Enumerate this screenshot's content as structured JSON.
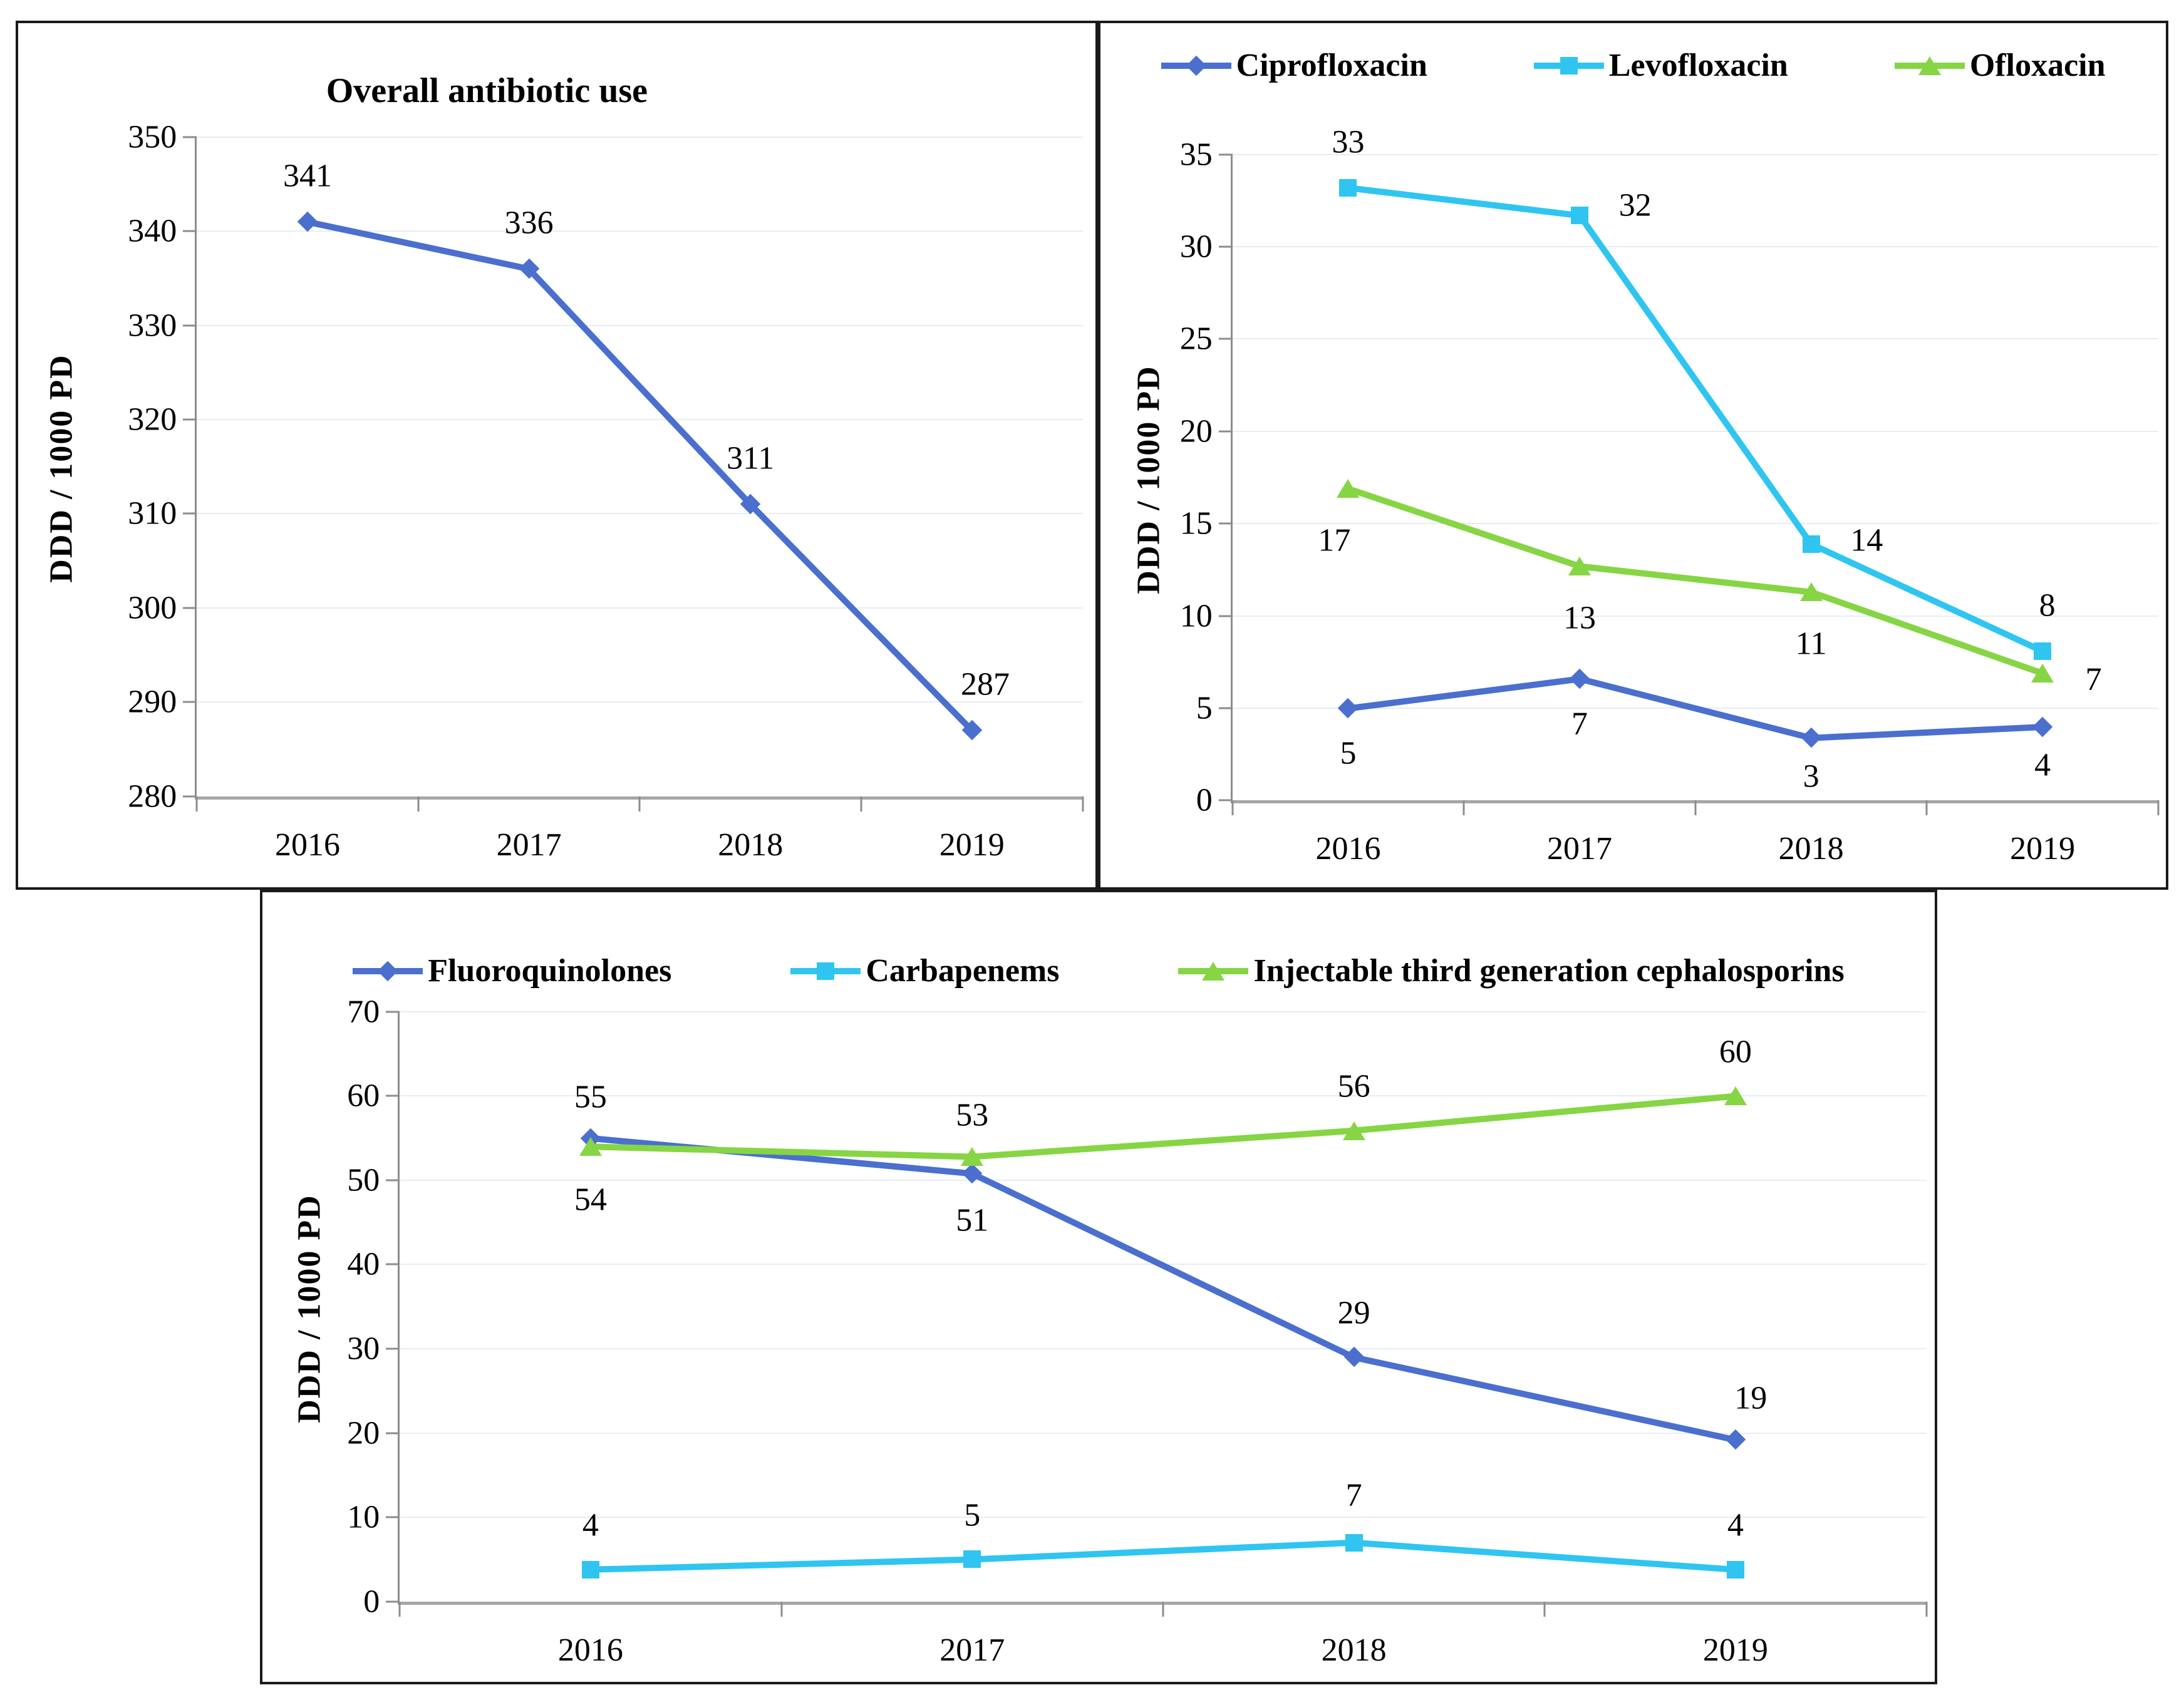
{
  "figure": {
    "description": "Three-panel line chart figure of antibiotic use, DDD per 1000 patient-days, 2016-2019",
    "x_categories": [
      "2016",
      "2017",
      "2018",
      "2019"
    ]
  },
  "colors": {
    "blue": "#4a6fce",
    "cyan": "#2fc5f0",
    "green": "#86d544",
    "gridline": "#e6edf6",
    "axis": "#8c8c8c"
  },
  "chart_data": [
    {
      "type": "line",
      "title": "Overall antibiotic use",
      "ylabel": "DDD / 1000 PD",
      "xlabel": "",
      "categories": [
        "2016",
        "2017",
        "2018",
        "2019"
      ],
      "ylim": [
        280,
        350
      ],
      "ytick_step": 10,
      "grid": true,
      "legend_position": "none",
      "series": [
        {
          "name": "Overall antibiotic use",
          "color": "#4a6fce",
          "marker": "diamond",
          "values": [
            341,
            336,
            311,
            287
          ],
          "labels": [
            "341",
            "336",
            "311",
            "287"
          ],
          "label_offsets": [
            [
              0,
              -7
            ],
            [
              0,
              -7
            ],
            [
              0,
              -7
            ],
            [
              1.5,
              -7
            ]
          ]
        }
      ]
    },
    {
      "type": "line",
      "title": "",
      "ylabel": "DDD / 1000 PD",
      "xlabel": "",
      "categories": [
        "2016",
        "2017",
        "2018",
        "2019"
      ],
      "ylim": [
        0,
        35
      ],
      "ytick_step": 5,
      "grid": true,
      "legend_position": "top",
      "series": [
        {
          "name": "Ciprofloxacin",
          "color": "#4a6fce",
          "marker": "diamond",
          "values": [
            5,
            7,
            3,
            4
          ],
          "plot_values": [
            5,
            6.6,
            3.4,
            4
          ],
          "labels": [
            "5",
            "7",
            "3",
            "4"
          ],
          "label_offsets": [
            [
              0,
              7
            ],
            [
              0,
              7
            ],
            [
              0,
              6
            ],
            [
              0,
              6
            ]
          ]
        },
        {
          "name": "Levofloxacin",
          "color": "#2fc5f0",
          "marker": "square",
          "values": [
            33,
            32,
            14,
            8
          ],
          "plot_values": [
            33.2,
            31.7,
            13.9,
            8.1
          ],
          "labels": [
            "33",
            "32",
            "14",
            "8"
          ],
          "label_offsets": [
            [
              0,
              -7
            ],
            [
              6,
              -1.5
            ],
            [
              6,
              -0.5
            ],
            [
              0.5,
              -7
            ]
          ]
        },
        {
          "name": "Ofloxacin",
          "color": "#86d544",
          "marker": "triangle",
          "values": [
            17,
            13,
            11,
            7
          ],
          "plot_values": [
            16.9,
            12.7,
            11.3,
            6.9
          ],
          "labels": [
            "17",
            "13",
            "11",
            "7"
          ],
          "label_offsets": [
            [
              -1.5,
              8
            ],
            [
              0,
              8
            ],
            [
              0,
              8
            ],
            [
              5.5,
              1
            ]
          ]
        }
      ]
    },
    {
      "type": "line",
      "title": "",
      "ylabel": "DDD / 1000 PD",
      "xlabel": "",
      "categories": [
        "2016",
        "2017",
        "2018",
        "2019"
      ],
      "ylim": [
        0,
        70
      ],
      "ytick_step": 10,
      "grid": true,
      "legend_position": "top",
      "series": [
        {
          "name": "Fluoroquinolones",
          "color": "#4a6fce",
          "marker": "diamond",
          "values": [
            55,
            51,
            29,
            19
          ],
          "plot_values": [
            55,
            50.8,
            29,
            19.2
          ],
          "labels": [
            "55",
            "51",
            "29",
            "19"
          ],
          "label_offsets": [
            [
              0,
              -7
            ],
            [
              0,
              8
            ],
            [
              0,
              -7.5
            ],
            [
              1,
              -7
            ]
          ]
        },
        {
          "name": "Carbapenems",
          "color": "#2fc5f0",
          "marker": "square",
          "values": [
            4,
            5,
            7,
            4
          ],
          "plot_values": [
            3.8,
            5,
            7,
            3.8
          ],
          "labels": [
            "4",
            "5",
            "7",
            "4"
          ],
          "label_offsets": [
            [
              0,
              -7.5
            ],
            [
              0,
              -7.5
            ],
            [
              0,
              -8
            ],
            [
              0,
              -7.5
            ]
          ]
        },
        {
          "name": "Injectable third generation cephalosporins",
          "color": "#86d544",
          "marker": "triangle",
          "values": [
            54,
            53,
            56,
            60
          ],
          "plot_values": [
            54,
            52.8,
            55.9,
            60
          ],
          "labels": [
            "54",
            "53",
            "56",
            "60"
          ],
          "label_offsets": [
            [
              0,
              9
            ],
            [
              0,
              -7
            ],
            [
              0,
              -7.5
            ],
            [
              0,
              -7.5
            ]
          ]
        }
      ]
    }
  ]
}
